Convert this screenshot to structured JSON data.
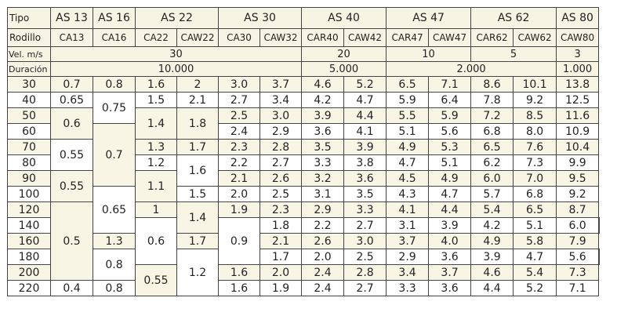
{
  "table": {
    "type_label": "Tipo",
    "roller_label": "Rodillo",
    "speed_label": "Vel. m/s",
    "duration_label": "Duración",
    "types": [
      "AS 13",
      "AS 16",
      "AS 22",
      "AS 30",
      "AS 40",
      "AS 47",
      "AS 62",
      "AS 80"
    ],
    "rollers": [
      "CA13",
      "CA16",
      "CA22",
      "CAW22",
      "CA30",
      "CAW32",
      "CAR40",
      "CAW42",
      "CAR47",
      "CAW47",
      "CAR62",
      "CAW62",
      "CAW80"
    ],
    "speeds": [
      "30",
      "20",
      "10",
      "5",
      "3"
    ],
    "durations": [
      "10.000",
      "5.000",
      "2.000",
      "1.000"
    ],
    "rows": [
      {
        "load": "30",
        "ca13": "0.7",
        "ca16": "0.8",
        "ca22": "1.6",
        "caw22": "2",
        "ca30": "3.0",
        "caw32": "3.7",
        "car40": "4.6",
        "caw42": "5.2",
        "car47": "6.5",
        "caw47": "7.1",
        "car62": "8.6",
        "caw62": "10.1",
        "caw80": "13.8"
      },
      {
        "load": "40",
        "ca13": "0.65",
        "ca16": "0.75",
        "ca22": "1.5",
        "caw22": "2.1",
        "ca30": "2.7",
        "caw32": "3.4",
        "car40": "4.2",
        "caw42": "4.7",
        "car47": "5.9",
        "caw47": "6.4",
        "car62": "7.8",
        "caw62": "9.2",
        "caw80": "12.5"
      },
      {
        "load": "50",
        "ca13": "0.6",
        "ca16": "",
        "ca22": "1.4",
        "caw22": "1.8",
        "ca30": "2.5",
        "caw32": "3.0",
        "car40": "3.9",
        "caw42": "4.4",
        "car47": "5.5",
        "caw47": "5.9",
        "car62": "7.2",
        "caw62": "8.5",
        "caw80": "11.6"
      },
      {
        "load": "60",
        "ca13": "",
        "ca16": "",
        "ca22": "",
        "caw22": "",
        "ca30": "2.4",
        "caw32": "2.9",
        "car40": "3.6",
        "caw42": "4.1",
        "car47": "5.1",
        "caw47": "5.6",
        "car62": "6.8",
        "caw62": "8.0",
        "caw80": "10.9"
      },
      {
        "load": "70",
        "ca13": "0.55",
        "ca16": "0.7",
        "ca22": "1.3",
        "caw22": "1.7",
        "ca30": "2.3",
        "caw32": "2.8",
        "car40": "3.5",
        "caw42": "3.9",
        "car47": "4.9",
        "caw47": "5.3",
        "car62": "6.5",
        "caw62": "7.6",
        "caw80": "10.4"
      },
      {
        "load": "80",
        "ca13": "",
        "ca16": "",
        "ca22": "1.2",
        "caw22": "1.6",
        "ca30": "2.2",
        "caw32": "2.7",
        "car40": "3.3",
        "caw42": "3.8",
        "car47": "4.7",
        "caw47": "5.1",
        "car62": "6.2",
        "caw62": "7.3",
        "caw80": "9.9"
      },
      {
        "load": "90",
        "ca13": "0.55",
        "ca16": "",
        "ca22": "1.1",
        "caw22": "",
        "ca30": "2.1",
        "caw32": "2.6",
        "car40": "3.2",
        "caw42": "3.6",
        "car47": "4.5",
        "caw47": "4.9",
        "car62": "6.0",
        "caw62": "7.0",
        "caw80": "9.5"
      },
      {
        "load": "100",
        "ca13": "",
        "ca16": "0.65",
        "ca22": "",
        "caw22": "1.5",
        "ca30": "2.0",
        "caw32": "2.5",
        "car40": "3.1",
        "caw42": "3.5",
        "car47": "4.3",
        "caw47": "4.7",
        "car62": "5.7",
        "caw62": "6.8",
        "caw80": "9.2"
      },
      {
        "load": "120",
        "ca13": "0.5",
        "ca16": "",
        "ca22": "1",
        "caw22": "1.4",
        "ca30": "1.9",
        "caw32": "2.3",
        "car40": "2.9",
        "caw42": "3.3",
        "car47": "4.1",
        "caw47": "4.4",
        "car62": "5.4",
        "caw62": "6.5",
        "caw80": "8.7"
      },
      {
        "load": "140",
        "ca13": "",
        "ca16": "0.6",
        "ca22": "0.9",
        "caw22": "",
        "ca30": "1.8",
        "caw32": "2.2",
        "car40": "2.7",
        "caw42": "3.1",
        "car47": "3.9",
        "caw47": "4.2",
        "car62": "5.1",
        "caw62": "6.0",
        "caw80": "8.2"
      },
      {
        "load": "160",
        "ca13": "",
        "ca16": "",
        "ca22": "",
        "caw22": "1.3",
        "ca30": "1.7",
        "caw32": "2.1",
        "car40": "2.6",
        "caw42": "3.0",
        "car47": "3.7",
        "caw47": "4.0",
        "car62": "4.9",
        "caw62": "5.8",
        "caw80": "7.9"
      },
      {
        "load": "180",
        "ca13": "",
        "ca16": "",
        "ca22": "0.8",
        "caw22": "1.2",
        "ca30": "1.7",
        "caw32": "2.0",
        "car40": "2.5",
        "caw42": "2.9",
        "car47": "3.6",
        "caw47": "3.9",
        "car62": "4.7",
        "caw62": "5.6",
        "caw80": "7.6"
      },
      {
        "load": "200",
        "ca13": "",
        "ca16": "0.55",
        "ca22": "",
        "caw22": "",
        "ca30": "1.6",
        "caw32": "2.0",
        "car40": "2.4",
        "caw42": "2.8",
        "car47": "3.4",
        "caw47": "3.7",
        "car62": "4.6",
        "caw62": "5.4",
        "caw80": "7.3"
      },
      {
        "load": "220",
        "ca13": "0.4",
        "ca16": "",
        "ca22": "0.8",
        "caw22": "",
        "ca30": "1.6",
        "caw32": "1.9",
        "car40": "2.4",
        "caw42": "2.7",
        "car47": "3.3",
        "caw47": "3.6",
        "car62": "4.4",
        "caw62": "5.2",
        "caw80": "7.1"
      }
    ]
  }
}
